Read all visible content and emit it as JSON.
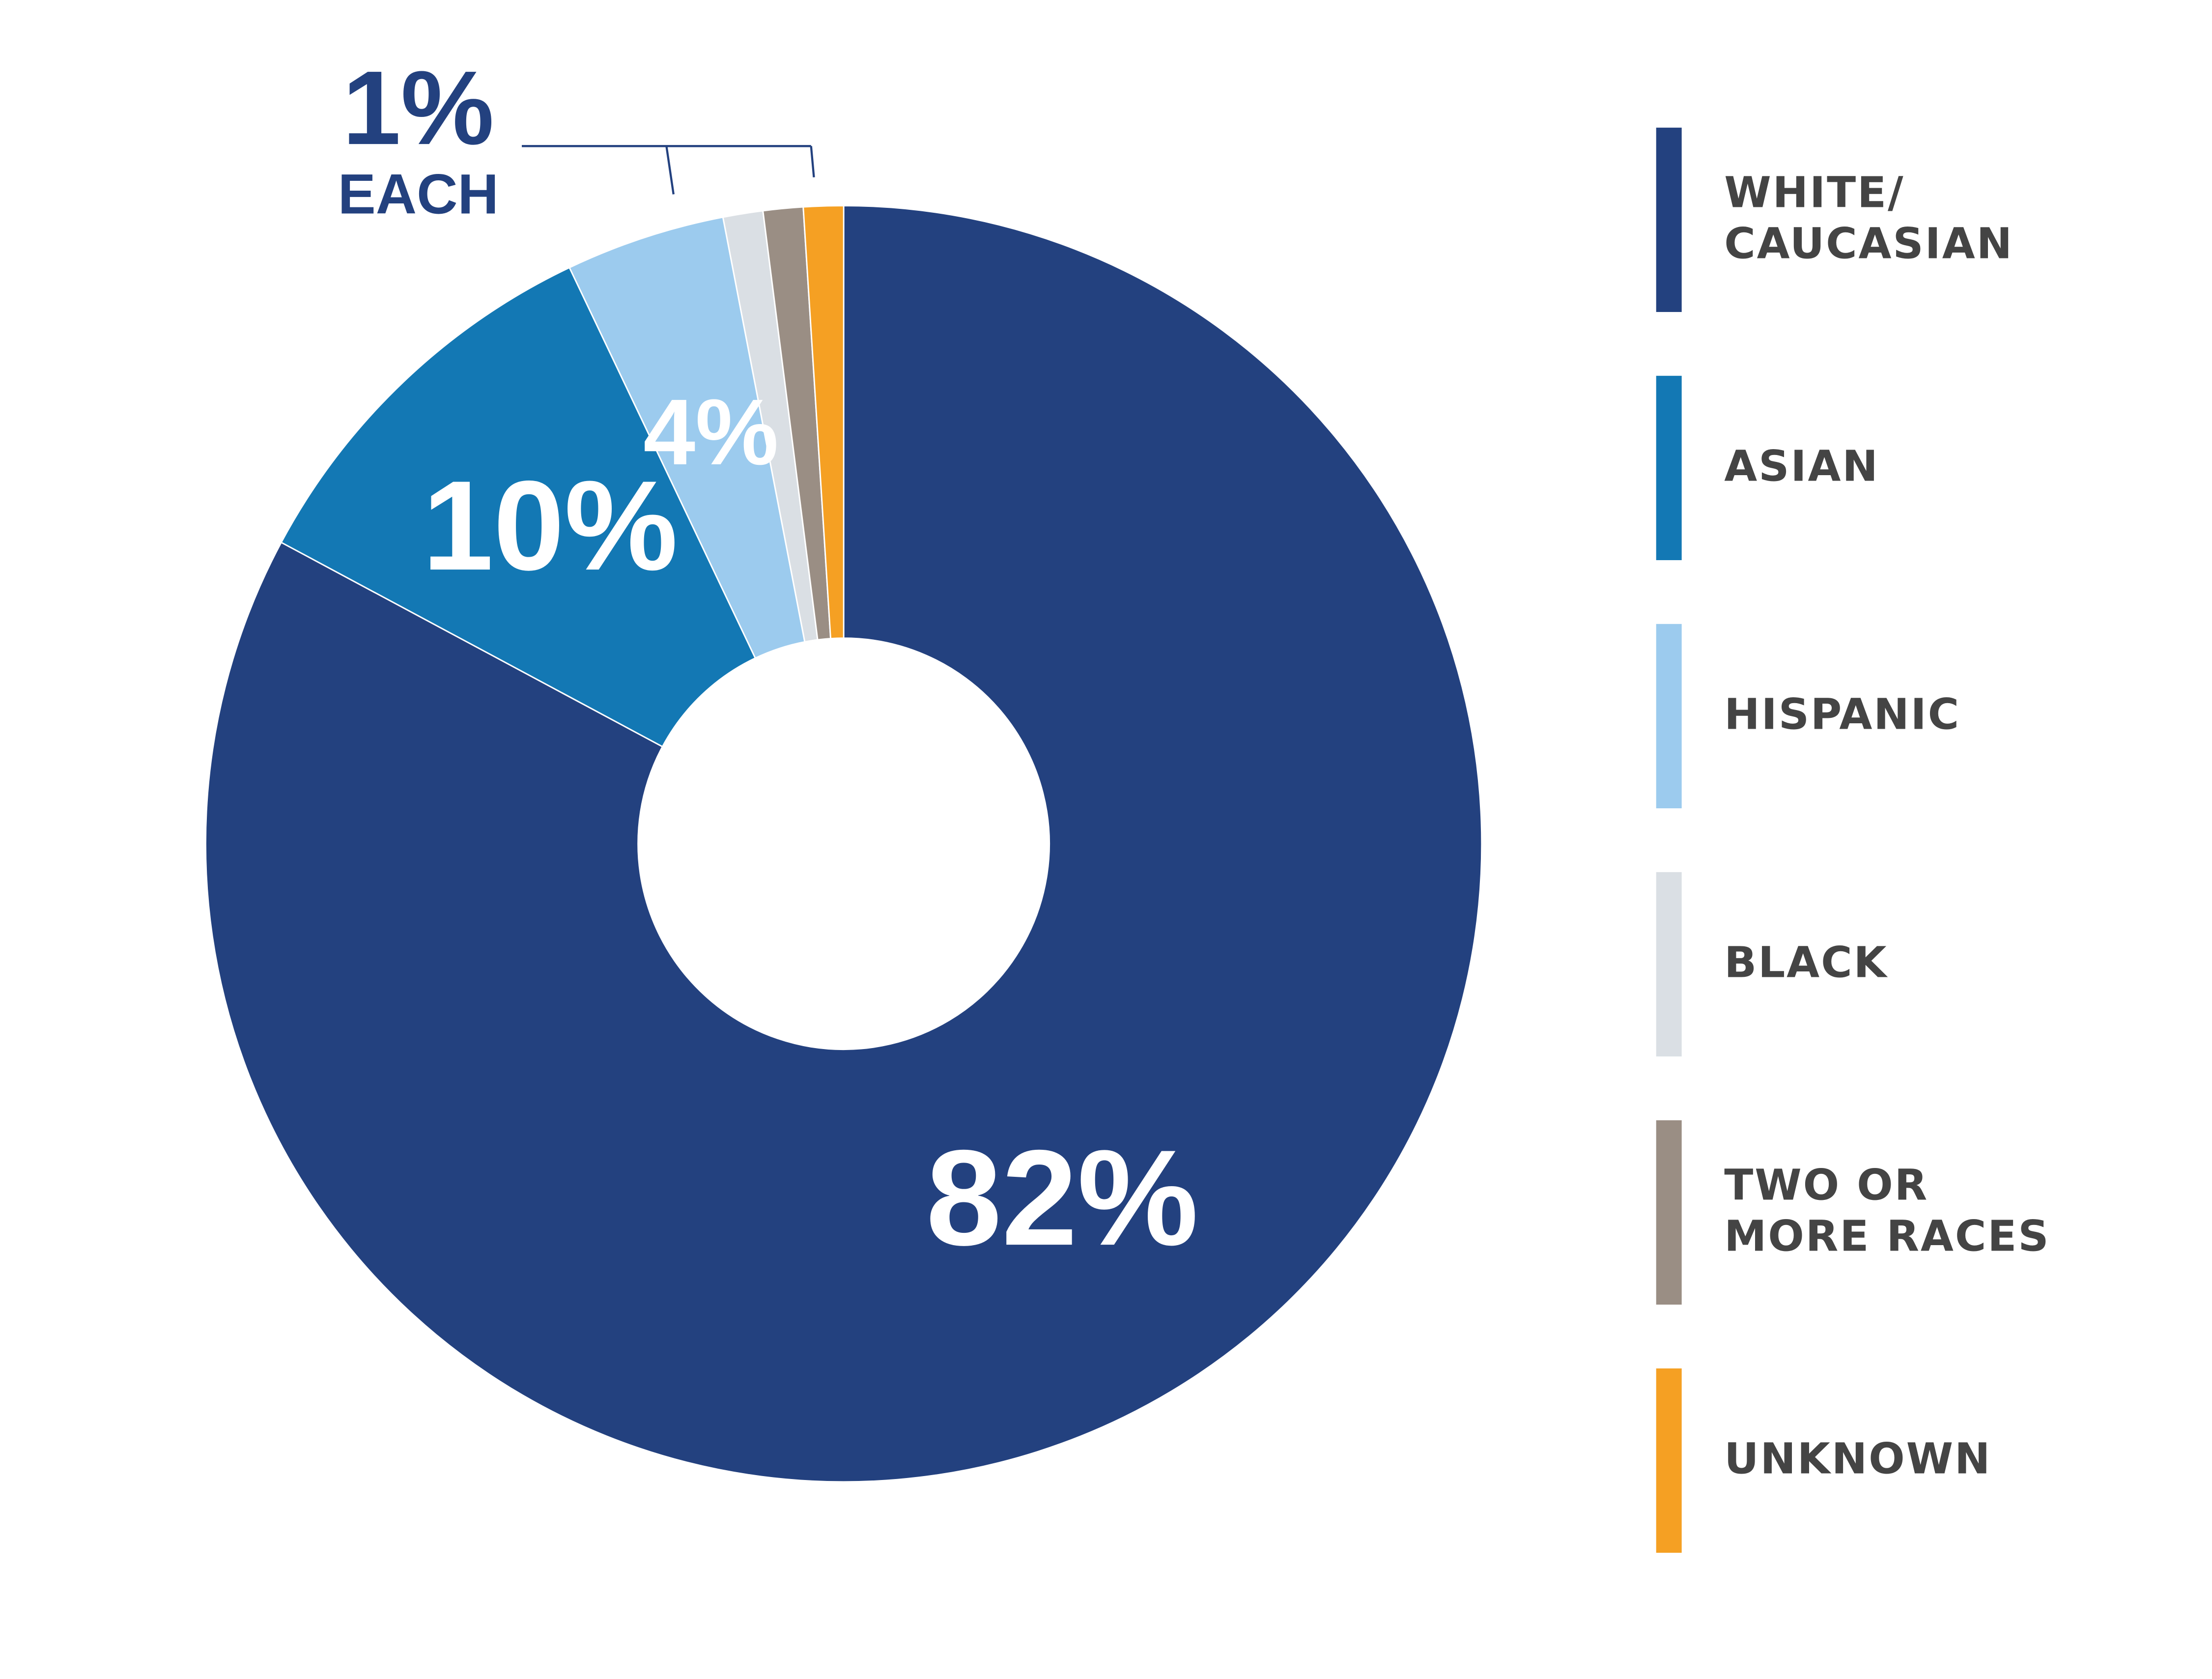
{
  "chart_data": {
    "type": "donut",
    "categories": [
      "WHITE/\nCAUCASIAN",
      "ASIAN",
      "HISPANIC",
      "BLACK",
      "TWO OR\nMORE RACES",
      "UNKNOWN"
    ],
    "values": [
      82,
      10,
      4,
      1,
      1,
      1
    ],
    "value_labels": [
      "82%",
      "10%",
      "4%",
      null,
      null,
      null
    ],
    "colors": [
      "#23417f",
      "#1378b4",
      "#9ccbee",
      "#dadfe4",
      "#9a8e84",
      "#f5a023"
    ],
    "annotation": {
      "text": "1%",
      "note": "EACH"
    },
    "legend": "right"
  }
}
